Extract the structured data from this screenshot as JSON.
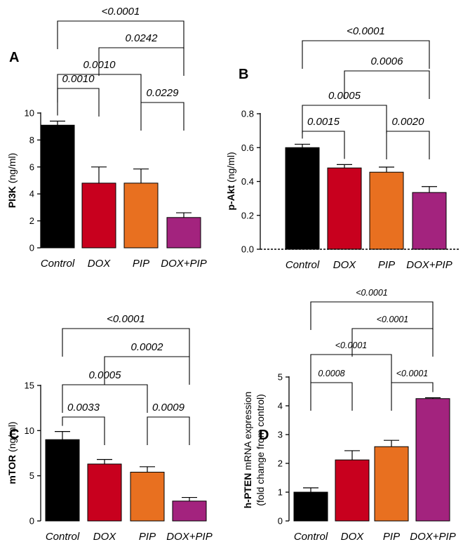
{
  "colors": {
    "control": "#000000",
    "dox": "#c8001e",
    "pip": "#e87020",
    "doxpip": "#a3237e"
  },
  "chart_data": [
    {
      "type": "bar",
      "panel": "A",
      "ylabel_bold": "PI3K",
      "ylabel_rest": " (ng/ml)",
      "categories": [
        "Control",
        "DOX",
        "PIP",
        "DOX+PIP"
      ],
      "values": [
        9.1,
        4.8,
        4.8,
        2.25
      ],
      "errors": [
        0.3,
        1.2,
        1.05,
        0.35
      ],
      "ylim": [
        0,
        10
      ],
      "yticks": [
        0,
        2,
        4,
        6,
        8,
        10
      ],
      "tick_labels": [
        "0",
        "2",
        "4",
        "6",
        "8",
        "10"
      ],
      "comparisons": [
        {
          "from": 0,
          "to": 1,
          "p": "0.0010"
        },
        {
          "from": 2,
          "to": 3,
          "p": "0.0229"
        },
        {
          "from": 0,
          "to": 2,
          "p": "0.0010"
        },
        {
          "from": 1,
          "to": 3,
          "p": "0.0242"
        },
        {
          "from": 0,
          "to": 3,
          "p": "<0.0001"
        }
      ]
    },
    {
      "type": "bar",
      "panel": "B",
      "ylabel_bold": "p-Akt",
      "ylabel_rest": " (ng/ml)",
      "categories": [
        "Control",
        "DOX",
        "PIP",
        "DOX+PIP"
      ],
      "values": [
        0.6,
        0.48,
        0.455,
        0.335
      ],
      "errors": [
        0.02,
        0.02,
        0.03,
        0.035
      ],
      "ylim": [
        0,
        0.8
      ],
      "yticks": [
        0,
        0.2,
        0.4,
        0.6,
        0.8
      ],
      "tick_labels": [
        "0.0",
        "0.2",
        "0.4",
        "0.6",
        "0.8"
      ],
      "comparisons": [
        {
          "from": 0,
          "to": 1,
          "p": "0.0015"
        },
        {
          "from": 2,
          "to": 3,
          "p": "0.0020"
        },
        {
          "from": 0,
          "to": 2,
          "p": "0.0005"
        },
        {
          "from": 1,
          "to": 3,
          "p": "0.0006"
        },
        {
          "from": 0,
          "to": 3,
          "p": "<0.0001"
        }
      ]
    },
    {
      "type": "bar",
      "panel": "C",
      "ylabel_bold": "mTOR",
      "ylabel_rest": " (ng/ml)",
      "categories": [
        "Control",
        "DOX",
        "PIP",
        "DOX+PIP"
      ],
      "values": [
        9.0,
        6.3,
        5.4,
        2.2
      ],
      "errors": [
        0.9,
        0.5,
        0.6,
        0.4
      ],
      "ylim": [
        0,
        15
      ],
      "yticks": [
        0,
        5,
        10,
        15
      ],
      "tick_labels": [
        "0",
        "5",
        "10",
        "15"
      ],
      "comparisons": [
        {
          "from": 0,
          "to": 1,
          "p": "0.0033"
        },
        {
          "from": 2,
          "to": 3,
          "p": "0.0009"
        },
        {
          "from": 0,
          "to": 2,
          "p": "0.0005"
        },
        {
          "from": 1,
          "to": 3,
          "p": "0.0002"
        },
        {
          "from": 0,
          "to": 3,
          "p": "<0.0001"
        }
      ]
    },
    {
      "type": "bar",
      "panel": "D",
      "ylabel_bold": "h-PTEN",
      "ylabel_rest": " mRNA expression",
      "ylabel_line2": "(fold change from control)",
      "categories": [
        "Control",
        "DOX",
        "PIP",
        "DOX+PIP"
      ],
      "values": [
        1.0,
        2.12,
        2.58,
        4.25
      ],
      "errors": [
        0.15,
        0.32,
        0.22,
        0.03
      ],
      "ylim": [
        0,
        5
      ],
      "yticks": [
        0,
        1,
        2,
        3,
        4,
        5
      ],
      "tick_labels": [
        "0",
        "1",
        "2",
        "3",
        "4",
        "5"
      ],
      "comparisons": [
        {
          "from": 0,
          "to": 1,
          "p": "0.0008"
        },
        {
          "from": 2,
          "to": 3,
          "p": "<0.0001"
        },
        {
          "from": 0,
          "to": 2,
          "p": "<0.0001"
        },
        {
          "from": 1,
          "to": 3,
          "p": "<0.0001"
        },
        {
          "from": 0,
          "to": 3,
          "p": "<0.0001"
        }
      ]
    }
  ]
}
